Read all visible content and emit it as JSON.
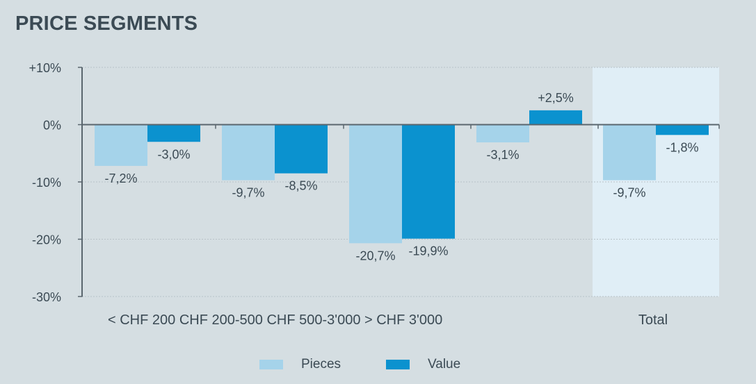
{
  "title": "PRICE SEGMENTS",
  "colors": {
    "pieces": "#a5d3ea",
    "value": "#0b92cf",
    "total_band": "#e0eef6",
    "axis": "#5a666e",
    "grid": "#b8c2c8",
    "text": "#3b4a54",
    "background": "#d5dee2"
  },
  "legend": {
    "pieces_label": "Pieces",
    "value_label": "Value"
  },
  "chart_data": {
    "type": "bar",
    "title": "PRICE SEGMENTS",
    "categories": [
      "< CHF 200",
      "CHF 200-500",
      "CHF 500-3'000",
      "> CHF 3'000",
      "Total"
    ],
    "category_axis_text": "< CHF 200 CHF 200-500 CHF 500-3'000 > CHF 3'000",
    "total_label": "Total",
    "series": [
      {
        "name": "Pieces",
        "values": [
          -7.2,
          -9.7,
          -20.7,
          -3.1,
          -9.7
        ],
        "labels": [
          "-7,2%",
          "-9,7%",
          "-20,7%",
          "-3,1%",
          "-9,7%"
        ]
      },
      {
        "name": "Value",
        "values": [
          -3.0,
          -8.5,
          -19.9,
          2.5,
          -1.8
        ],
        "labels": [
          "-3,0%",
          "-8,5%",
          "-19,9%",
          "+2,5%",
          "-1,8%"
        ]
      }
    ],
    "yticks": [
      10,
      0,
      -10,
      -20,
      -30
    ],
    "ytick_labels": [
      "+10%",
      "0%",
      "-10%",
      "-20%",
      "-30%"
    ],
    "ylim": [
      -30,
      10
    ],
    "grid": true,
    "highlighted_category": "Total",
    "legend_position": "bottom"
  }
}
